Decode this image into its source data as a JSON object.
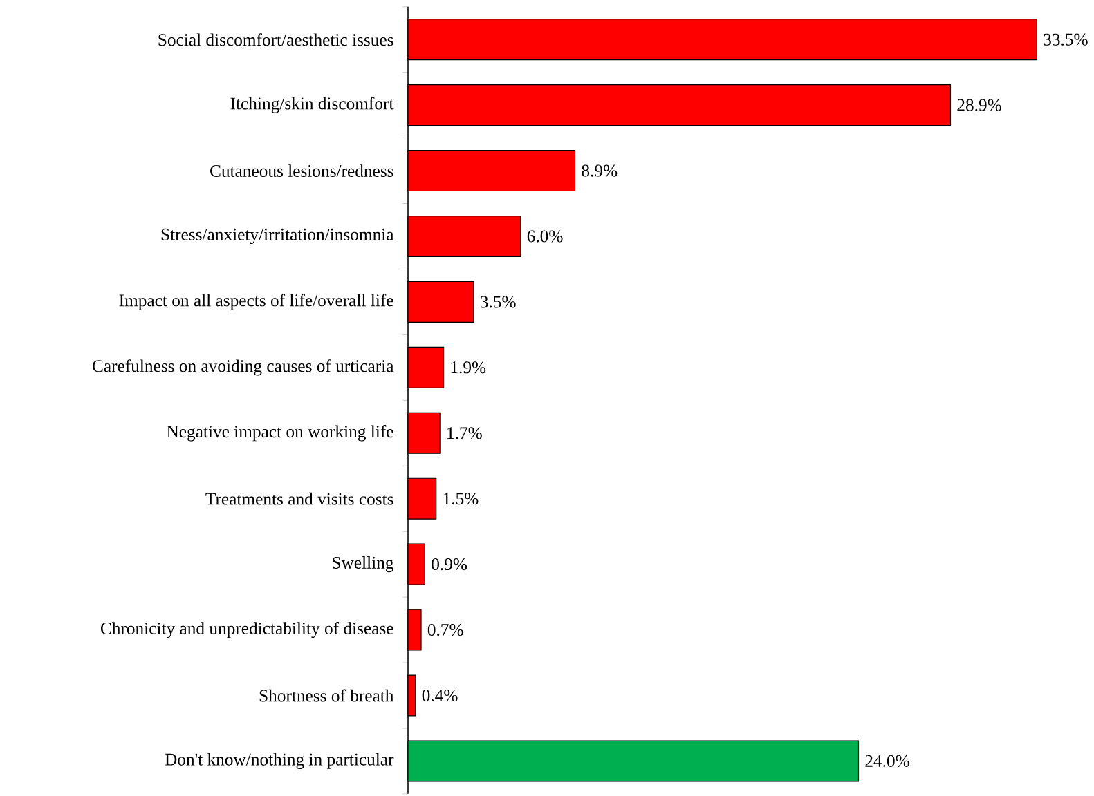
{
  "chart_data": {
    "type": "bar",
    "orientation": "horizontal",
    "categories": [
      "Social discomfort/aesthetic issues",
      "Itching/skin discomfort",
      "Cutaneous lesions/redness",
      "Stress/anxiety/irritation/insomnia",
      "Impact on all aspects of life/overall life",
      "Carefulness on avoiding causes of urticaria",
      "Negative impact on working life",
      "Treatments and visits costs",
      "Swelling",
      "Chronicity and unpredictability of disease",
      "Shortness of breath",
      "Don't know/nothing in particular"
    ],
    "values": [
      33.5,
      28.9,
      8.9,
      6.0,
      3.5,
      1.9,
      1.7,
      1.5,
      0.9,
      0.7,
      0.4,
      24.0
    ],
    "value_labels": [
      "33.5%",
      "28.9%",
      "8.9%",
      "6.0%",
      "3.5%",
      "1.9%",
      "1.7%",
      "1.5%",
      "0.9%",
      "0.7%",
      "0.4%",
      "24.0%"
    ],
    "colors": [
      "#ff0000",
      "#ff0000",
      "#ff0000",
      "#ff0000",
      "#ff0000",
      "#ff0000",
      "#ff0000",
      "#ff0000",
      "#ff0000",
      "#ff0000",
      "#ff0000",
      "#00b050"
    ]
  }
}
